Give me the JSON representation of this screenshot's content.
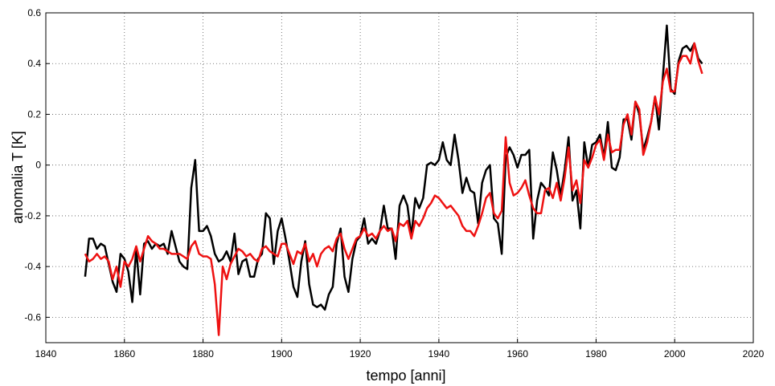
{
  "chart_data": {
    "type": "line",
    "xlabel": "tempo [anni]",
    "ylabel": "anomalia T [K]",
    "x": [
      1850,
      1851,
      1852,
      1853,
      1854,
      1855,
      1856,
      1857,
      1858,
      1859,
      1860,
      1861,
      1862,
      1863,
      1864,
      1865,
      1866,
      1867,
      1868,
      1869,
      1870,
      1871,
      1872,
      1873,
      1874,
      1875,
      1876,
      1877,
      1878,
      1879,
      1880,
      1881,
      1882,
      1883,
      1884,
      1885,
      1886,
      1887,
      1888,
      1889,
      1890,
      1891,
      1892,
      1893,
      1894,
      1895,
      1896,
      1897,
      1898,
      1899,
      1900,
      1901,
      1902,
      1903,
      1904,
      1905,
      1906,
      1907,
      1908,
      1909,
      1910,
      1911,
      1912,
      1913,
      1914,
      1915,
      1916,
      1917,
      1918,
      1919,
      1920,
      1921,
      1922,
      1923,
      1924,
      1925,
      1926,
      1927,
      1928,
      1929,
      1930,
      1931,
      1932,
      1933,
      1934,
      1935,
      1936,
      1937,
      1938,
      1939,
      1940,
      1941,
      1942,
      1943,
      1944,
      1945,
      1946,
      1947,
      1948,
      1949,
      1950,
      1951,
      1952,
      1953,
      1954,
      1955,
      1956,
      1957,
      1958,
      1959,
      1960,
      1961,
      1962,
      1963,
      1964,
      1965,
      1966,
      1967,
      1968,
      1969,
      1970,
      1971,
      1972,
      1973,
      1974,
      1975,
      1976,
      1977,
      1978,
      1979,
      1980,
      1981,
      1982,
      1983,
      1984,
      1985,
      1986,
      1987,
      1988,
      1989,
      1990,
      1991,
      1992,
      1993,
      1994,
      1995,
      1996,
      1997,
      1998,
      1999,
      2000,
      2001,
      2002,
      2003,
      2004,
      2005,
      2006,
      2007
    ],
    "series": [
      {
        "color": "#000000",
        "values": [
          -0.44,
          -0.29,
          -0.29,
          -0.33,
          -0.31,
          -0.32,
          -0.39,
          -0.46,
          -0.5,
          -0.35,
          -0.37,
          -0.42,
          -0.54,
          -0.33,
          -0.51,
          -0.31,
          -0.3,
          -0.33,
          -0.31,
          -0.32,
          -0.31,
          -0.35,
          -0.26,
          -0.32,
          -0.38,
          -0.4,
          -0.41,
          -0.09,
          0.02,
          -0.26,
          -0.26,
          -0.24,
          -0.28,
          -0.35,
          -0.38,
          -0.37,
          -0.34,
          -0.38,
          -0.27,
          -0.43,
          -0.38,
          -0.37,
          -0.44,
          -0.44,
          -0.37,
          -0.35,
          -0.19,
          -0.21,
          -0.39,
          -0.26,
          -0.21,
          -0.29,
          -0.38,
          -0.48,
          -0.52,
          -0.38,
          -0.3,
          -0.47,
          -0.55,
          -0.56,
          -0.55,
          -0.57,
          -0.51,
          -0.48,
          -0.31,
          -0.25,
          -0.44,
          -0.5,
          -0.37,
          -0.3,
          -0.28,
          -0.21,
          -0.31,
          -0.29,
          -0.31,
          -0.26,
          -0.16,
          -0.25,
          -0.25,
          -0.37,
          -0.16,
          -0.12,
          -0.16,
          -0.28,
          -0.13,
          -0.17,
          -0.13,
          0.0,
          0.01,
          0.0,
          0.02,
          0.09,
          0.02,
          0.0,
          0.12,
          0.02,
          -0.11,
          -0.05,
          -0.1,
          -0.11,
          -0.23,
          -0.07,
          -0.02,
          0.0,
          -0.21,
          -0.23,
          -0.35,
          0.03,
          0.07,
          0.04,
          -0.01,
          0.04,
          0.04,
          0.06,
          -0.29,
          -0.14,
          -0.07,
          -0.09,
          -0.12,
          0.05,
          -0.02,
          -0.12,
          -0.02,
          0.11,
          -0.14,
          -0.1,
          -0.25,
          0.09,
          -0.01,
          0.08,
          0.09,
          0.12,
          0.03,
          0.17,
          -0.01,
          -0.02,
          0.03,
          0.18,
          0.18,
          0.1,
          0.25,
          0.2,
          0.06,
          0.11,
          0.17,
          0.27,
          0.14,
          0.35,
          0.55,
          0.3,
          0.28,
          0.41,
          0.46,
          0.47,
          0.45,
          0.48,
          0.42,
          0.4
        ]
      },
      {
        "color": "#ee1111",
        "values": [
          -0.35,
          -0.38,
          -0.37,
          -0.35,
          -0.37,
          -0.36,
          -0.38,
          -0.45,
          -0.4,
          -0.48,
          -0.38,
          -0.4,
          -0.37,
          -0.32,
          -0.38,
          -0.33,
          -0.28,
          -0.3,
          -0.31,
          -0.33,
          -0.33,
          -0.34,
          -0.35,
          -0.35,
          -0.35,
          -0.36,
          -0.37,
          -0.32,
          -0.3,
          -0.35,
          -0.36,
          -0.36,
          -0.37,
          -0.47,
          -0.67,
          -0.4,
          -0.45,
          -0.39,
          -0.36,
          -0.33,
          -0.34,
          -0.36,
          -0.35,
          -0.37,
          -0.38,
          -0.33,
          -0.32,
          -0.34,
          -0.35,
          -0.36,
          -0.31,
          -0.31,
          -0.35,
          -0.39,
          -0.34,
          -0.35,
          -0.31,
          -0.38,
          -0.35,
          -0.4,
          -0.35,
          -0.33,
          -0.32,
          -0.34,
          -0.29,
          -0.27,
          -0.33,
          -0.37,
          -0.33,
          -0.29,
          -0.28,
          -0.25,
          -0.28,
          -0.27,
          -0.29,
          -0.26,
          -0.24,
          -0.26,
          -0.25,
          -0.3,
          -0.23,
          -0.24,
          -0.22,
          -0.29,
          -0.22,
          -0.24,
          -0.21,
          -0.17,
          -0.15,
          -0.12,
          -0.13,
          -0.15,
          -0.17,
          -0.16,
          -0.18,
          -0.2,
          -0.24,
          -0.26,
          -0.26,
          -0.28,
          -0.24,
          -0.19,
          -0.13,
          -0.11,
          -0.19,
          -0.21,
          -0.18,
          0.11,
          -0.07,
          -0.12,
          -0.11,
          -0.09,
          -0.06,
          -0.12,
          -0.17,
          -0.19,
          -0.19,
          -0.1,
          -0.09,
          -0.13,
          -0.07,
          -0.14,
          -0.05,
          0.07,
          -0.1,
          -0.06,
          -0.15,
          0.02,
          -0.01,
          0.03,
          0.08,
          0.1,
          0.02,
          0.12,
          0.05,
          0.06,
          0.06,
          0.16,
          0.2,
          0.12,
          0.25,
          0.22,
          0.04,
          0.09,
          0.17,
          0.27,
          0.2,
          0.33,
          0.38,
          0.29,
          0.29,
          0.4,
          0.43,
          0.43,
          0.4,
          0.48,
          0.41,
          0.36
        ]
      }
    ],
    "xlim": [
      1840,
      2020
    ],
    "xticks": [
      1840,
      1860,
      1880,
      1900,
      1920,
      1940,
      1960,
      1980,
      2000,
      2020
    ],
    "ylim": [
      -0.7,
      0.6
    ],
    "yticks": [
      -0.6,
      -0.4,
      -0.2,
      0,
      0.2,
      0.4,
      0.6
    ],
    "grid": true
  }
}
